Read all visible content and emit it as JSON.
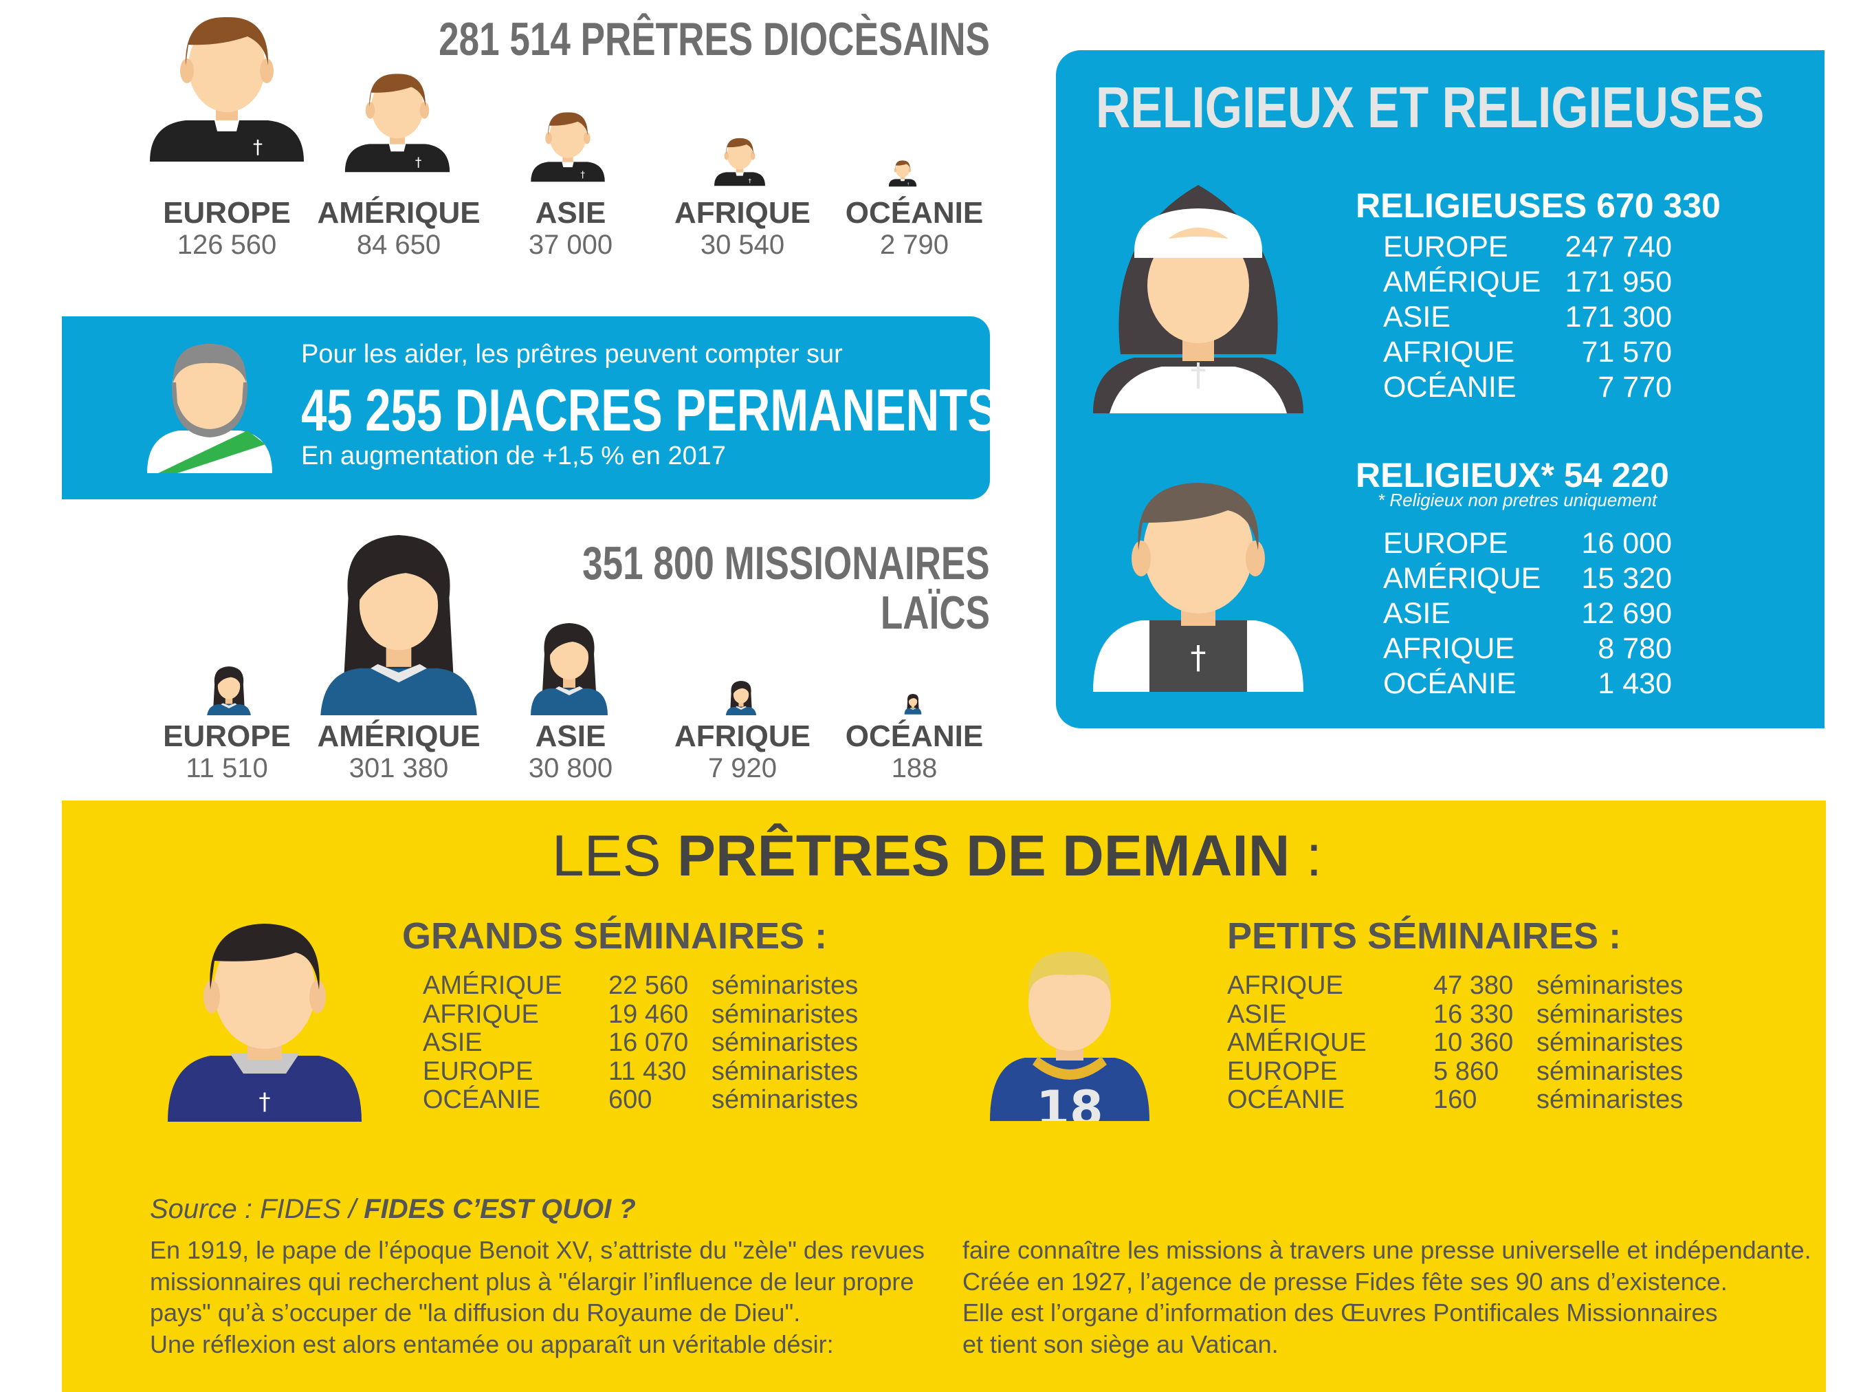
{
  "priests": {
    "title": "281 514 PRÊTRES DIOCÈSAINS",
    "regions": [
      {
        "name": "EUROPE",
        "value": "126 560"
      },
      {
        "name": "AMÉRIQUE",
        "value": "84 650"
      },
      {
        "name": "ASIE",
        "value": "37 000"
      },
      {
        "name": "AFRIQUE",
        "value": "30 540"
      },
      {
        "name": "OCÉANIE",
        "value": "2 790"
      }
    ]
  },
  "deacons": {
    "intro": "Pour les aider, les prêtres peuvent compter sur",
    "headline": "45 255 DIACRES PERMANENTS",
    "note": "En augmentation de +1,5 % en 2017"
  },
  "missionaries": {
    "title_line1": "351 800 MISSIONAIRES",
    "title_line2": "LAÏCS",
    "regions": [
      {
        "name": "EUROPE",
        "value": "11 510"
      },
      {
        "name": "AMÉRIQUE",
        "value": "301 380"
      },
      {
        "name": "ASIE",
        "value": "30 800"
      },
      {
        "name": "AFRIQUE",
        "value": "7 920"
      },
      {
        "name": "OCÉANIE",
        "value": "188"
      }
    ]
  },
  "religious": {
    "title": "RELIGIEUX ET RELIGIEUSES",
    "nuns": {
      "heading": "RELIGIEUSES 670 330",
      "rows": [
        {
          "region": "EUROPE",
          "value": "247 740"
        },
        {
          "region": "AMÉRIQUE",
          "value": "171 950"
        },
        {
          "region": "ASIE",
          "value": "171 300"
        },
        {
          "region": "AFRIQUE",
          "value": "71 570"
        },
        {
          "region": "OCÉANIE",
          "value": "7 770"
        }
      ]
    },
    "monks": {
      "heading": "RELIGIEUX* 54 220",
      "footnote": "* Religieux non pretres uniquement",
      "rows": [
        {
          "region": "EUROPE",
          "value": "16 000"
        },
        {
          "region": "AMÉRIQUE",
          "value": "15 320"
        },
        {
          "region": "ASIE",
          "value": "12 690"
        },
        {
          "region": "AFRIQUE",
          "value": "8 780"
        },
        {
          "region": "OCÉANIE",
          "value": "1 430"
        }
      ]
    }
  },
  "future": {
    "title_light": "LES ",
    "title_bold": "PRÊTRES DE DEMAIN",
    "title_suffix": " :",
    "grands": {
      "heading": "GRANDS SÉMINAIRES :",
      "rows": [
        {
          "region": "AMÉRIQUE",
          "value": "22 560",
          "unit": "séminaristes"
        },
        {
          "region": "AFRIQUE",
          "value": "19 460",
          "unit": "séminaristes"
        },
        {
          "region": "ASIE",
          "value": "16 070",
          "unit": "séminaristes"
        },
        {
          "region": "EUROPE",
          "value": "11 430",
          "unit": "séminaristes"
        },
        {
          "region": "OCÉANIE",
          "value": "600",
          "unit": "séminaristes"
        }
      ]
    },
    "petits": {
      "heading": "PETITS SÉMINAIRES :",
      "rows": [
        {
          "region": "AFRIQUE",
          "value": "47 380",
          "unit": "séminaristes"
        },
        {
          "region": "ASIE",
          "value": "16 330",
          "unit": "séminaristes"
        },
        {
          "region": "AMÉRIQUE",
          "value": "10 360",
          "unit": "séminaristes"
        },
        {
          "region": "EUROPE",
          "value": "5 860",
          "unit": "séminaristes"
        },
        {
          "region": "OCÉANIE",
          "value": "160",
          "unit": "séminaristes"
        }
      ]
    }
  },
  "source": {
    "label": "Source : FIDES / ",
    "bold_label": "FIDES C’EST QUOI ?",
    "col1": [
      "En 1919, le pape de l’époque Benoit XV, s’attriste du \"zèle\" des revues",
      "missionnaires qui recherchent plus à \"élargir l’influence de leur propre",
      "pays\" qu’à s’occuper de \"la diffusion du Royaume de Dieu\".",
      "Une réflexion est alors entamée ou apparaît un véritable désir:"
    ],
    "col2": [
      "faire connaître les missions à travers une presse universelle et indépendante.",
      "Créée en 1927, l’agence de presse Fides fête ses 90 ans d’existence.",
      "Elle est l’organe d’information des Œuvres Pontificales Missionnaires",
      "et tient son siège au Vatican."
    ]
  },
  "colors": {
    "blue": "#0aa3d8",
    "yellow": "#fbd502",
    "dark_text": "#555555",
    "skin": "#fbd5a8"
  }
}
